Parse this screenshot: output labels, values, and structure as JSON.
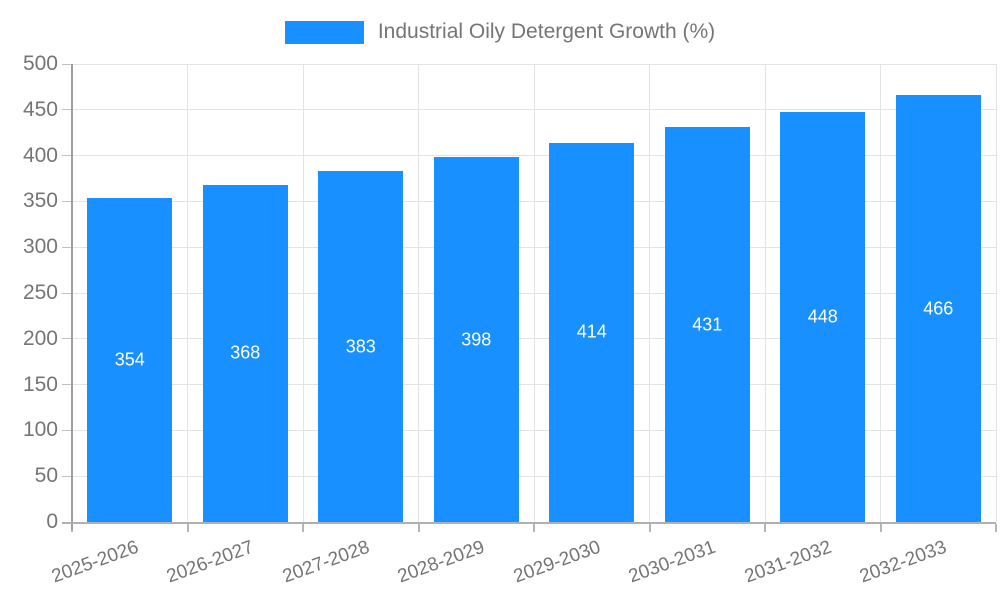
{
  "legend": {
    "label": "Industrial Oily Detergent Growth (%)"
  },
  "chart_data": {
    "type": "bar",
    "title": "",
    "xlabel": "",
    "ylabel": "",
    "categories": [
      "2025-2026",
      "2026-2027",
      "2027-2028",
      "2028-2029",
      "2029-2030",
      "2030-2031",
      "2031-2032",
      "2032-2033"
    ],
    "series": [
      {
        "name": "Industrial Oily Detergent Growth (%)",
        "values": [
          354,
          368,
          383,
          398,
          414,
          431,
          448,
          466
        ],
        "color": "#1890ff"
      }
    ],
    "value_labels": "centered-inside-bars",
    "ylim": [
      0,
      500
    ],
    "ytick_step": 50,
    "grid": true,
    "legend_position": "top",
    "xtick_rotation_deg": -20
  },
  "colors": {
    "bar": "#1890ff",
    "axis_line": "#9e9e9e",
    "gridline": "#e3e3e3",
    "tick_label": "#757575",
    "value_label": "#ffffff",
    "background": "#ffffff"
  }
}
